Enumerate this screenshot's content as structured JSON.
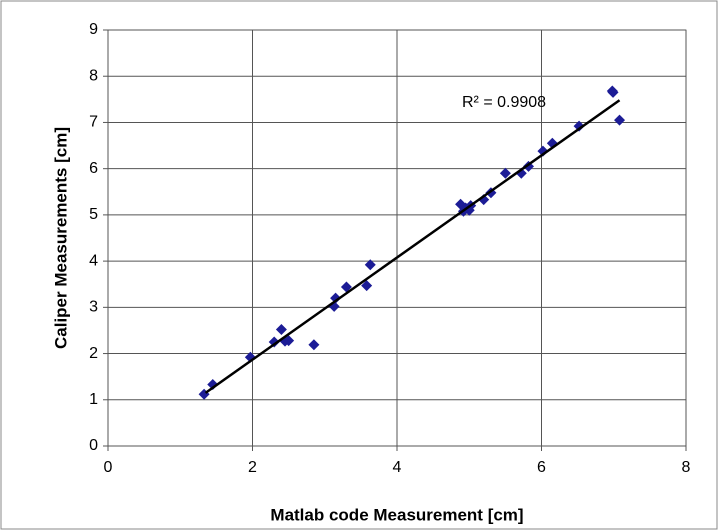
{
  "chart_data": {
    "type": "scatter",
    "xlabel": "Matlab code Measurement [cm]",
    "ylabel": "Caliper Measurements [cm]",
    "annotation": "R² = 0.9908",
    "xlim": [
      0,
      8
    ],
    "xticks": [
      0,
      2,
      4,
      6,
      8
    ],
    "ylim": [
      0,
      9
    ],
    "yticks": [
      0,
      1,
      2,
      3,
      4,
      5,
      6,
      7,
      8,
      9
    ],
    "grid": true,
    "series": [
      {
        "color": "#1c1c96",
        "x": [
          1.33,
          1.45,
          1.97,
          2.3,
          2.4,
          2.45,
          2.5,
          2.85,
          3.13,
          3.15,
          3.3,
          3.58,
          3.63,
          4.88,
          4.92,
          4.95,
          5.02,
          5.0,
          5.2,
          5.3,
          5.5,
          5.72,
          5.82,
          6.02,
          6.15,
          6.52,
          6.99,
          6.98,
          7.08
        ],
        "values": [
          1.12,
          1.33,
          1.92,
          2.25,
          2.52,
          2.27,
          2.28,
          2.19,
          3.02,
          3.2,
          3.44,
          3.47,
          3.92,
          5.23,
          5.08,
          5.15,
          5.2,
          5.1,
          5.33,
          5.48,
          5.9,
          5.9,
          6.05,
          6.38,
          6.55,
          6.92,
          7.65,
          7.68,
          7.05
        ]
      }
    ],
    "trendline": {
      "color": "#000000",
      "x": [
        1.35,
        7.08
      ],
      "values": [
        1.15,
        7.48
      ]
    }
  }
}
